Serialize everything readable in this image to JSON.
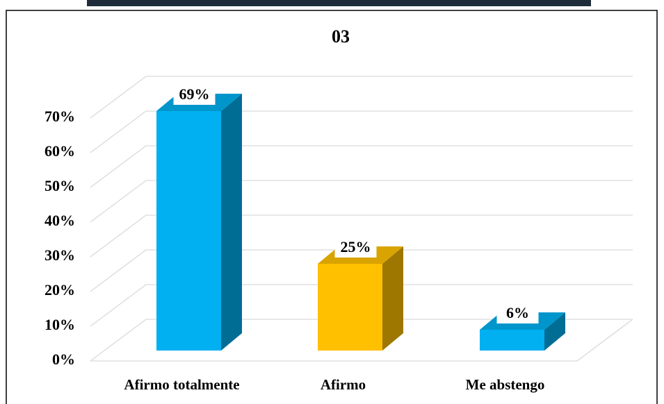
{
  "chart_data": {
    "type": "bar3d",
    "title": "03",
    "categories": [
      "Afirmo totalmente",
      "Afirmo",
      "Me abstengo"
    ],
    "values": [
      69,
      25,
      6
    ],
    "value_labels": [
      "69%",
      "25%",
      "6%"
    ],
    "colors": [
      "#00b0f0",
      "#ffc000",
      "#00b0f0"
    ],
    "ylim": [
      0,
      70
    ],
    "yticks": [
      {
        "value": 0,
        "label": "0%"
      },
      {
        "value": 10,
        "label": "10%"
      },
      {
        "value": 20,
        "label": "20%"
      },
      {
        "value": 30,
        "label": "30%"
      },
      {
        "value": 40,
        "label": "40%"
      },
      {
        "value": 50,
        "label": "50%"
      },
      {
        "value": 60,
        "label": "60%"
      },
      {
        "value": 70,
        "label": "70%"
      }
    ],
    "grid": true
  }
}
